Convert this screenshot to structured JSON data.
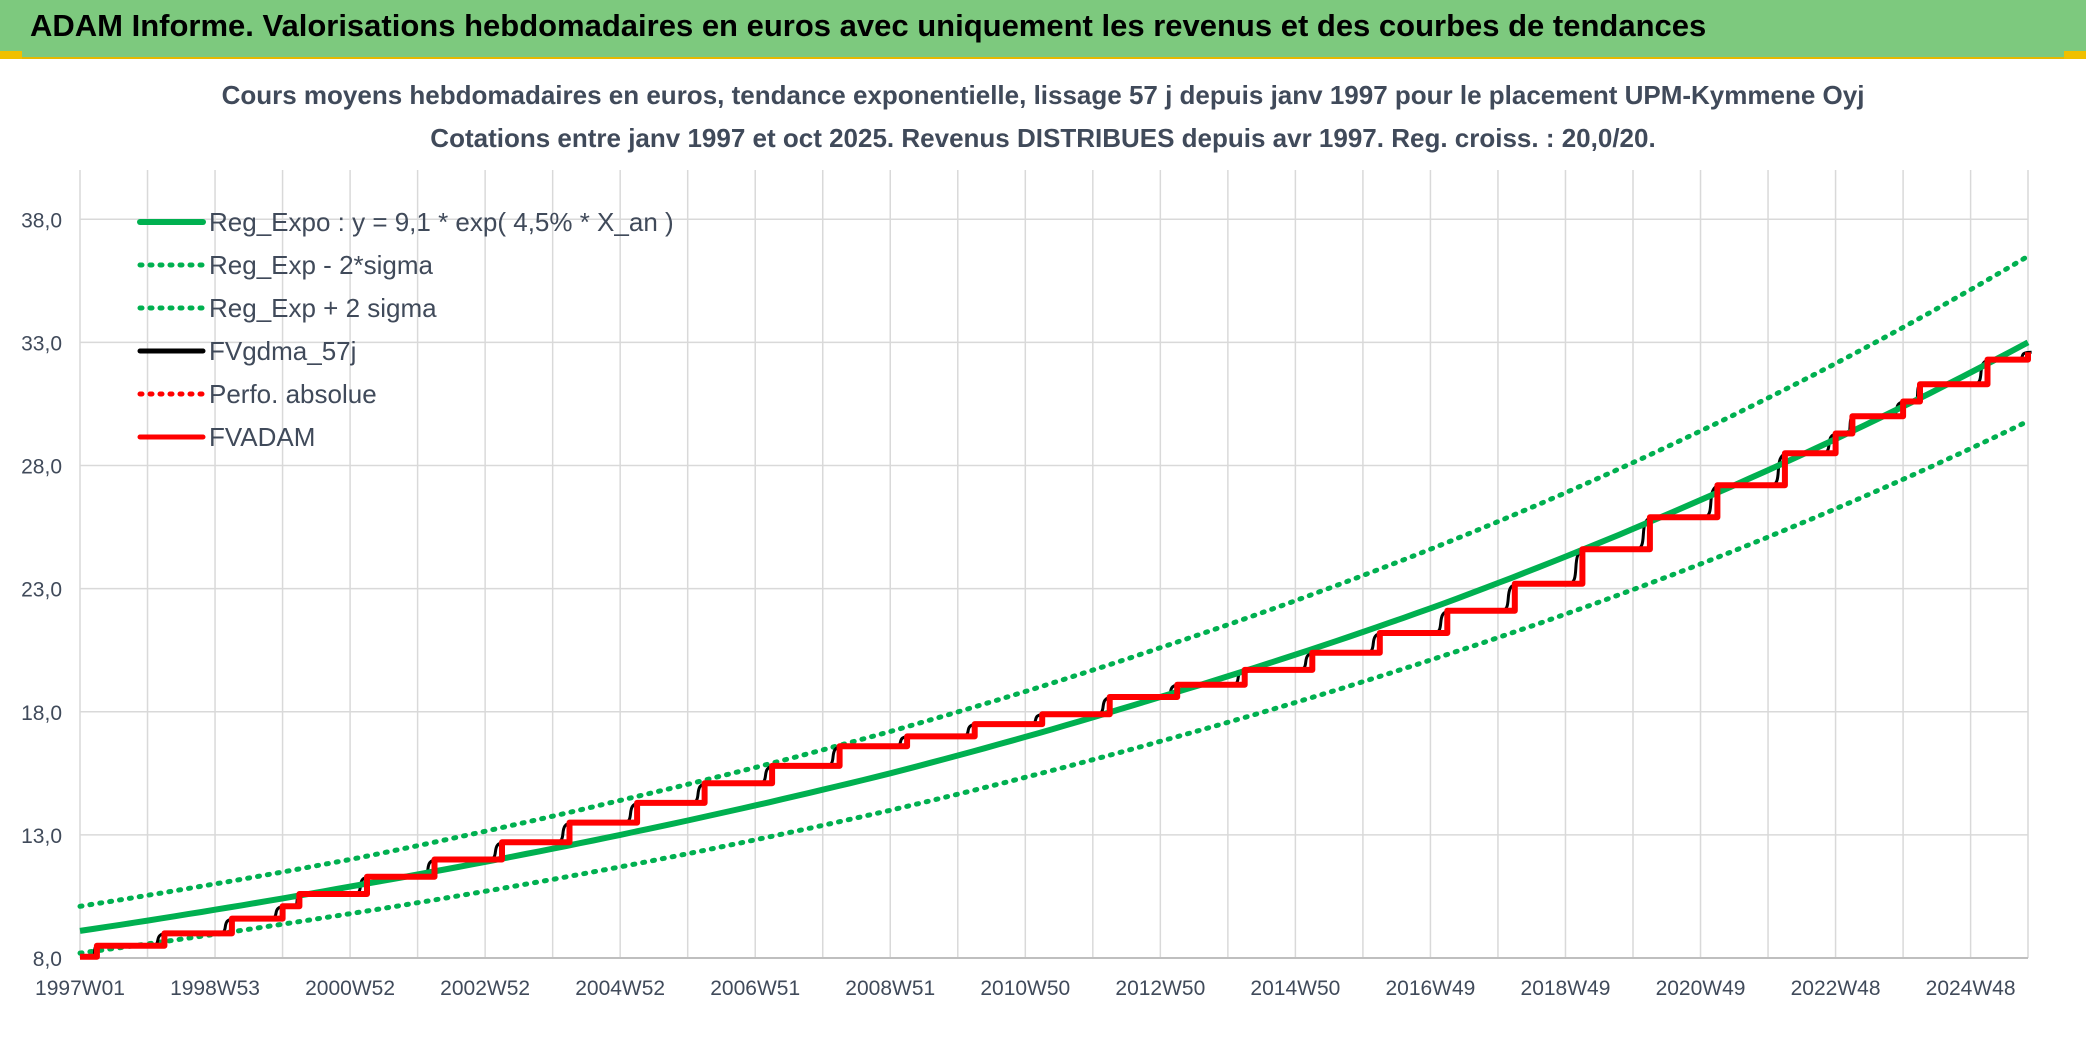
{
  "banner": {
    "title": "ADAM Informe. Valorisations hebdomadaires en euros avec uniquement les revenus et des courbes de tendances"
  },
  "colors": {
    "banner": "#7dc97e",
    "reg_expo": "#00b050",
    "fvgdma": "#000000",
    "fvadam": "#ff0000",
    "perfo": "#ff0000",
    "grid": "#d9d9d9"
  },
  "chart_data": {
    "type": "line",
    "title": "Cours moyens hebdomadaires en euros, tendance exponentielle, lissage 57 j depuis janv 1997 pour le placement UPM-Kymmene Oyj",
    "subtitle": "Cotations entre janv 1997 et oct 2025. Revenus DISTRIBUES depuis avr 1997. Reg. croiss. : 20,0/20.",
    "xlabel": "",
    "ylabel": "",
    "ylim": [
      8.0,
      40.0
    ],
    "y_ticks": [
      "8,0",
      "13,0",
      "18,0",
      "23,0",
      "28,0",
      "33,0",
      "38,0"
    ],
    "x_ticks": [
      "1997W01",
      "1998W53",
      "2000W52",
      "2002W52",
      "2004W52",
      "2006W51",
      "2008W51",
      "2010W50",
      "2012W50",
      "2014W50",
      "2016W49",
      "2018W49",
      "2020W49",
      "2022W48",
      "2024W48"
    ],
    "x_tick_years": [
      1997.0,
      1999.0,
      2001.0,
      2003.0,
      2005.0,
      2007.0,
      2009.0,
      2011.0,
      2013.0,
      2015.0,
      2017.0,
      2019.0,
      2021.0,
      2023.0,
      2025.0
    ],
    "xlim": [
      1997.0,
      2025.85
    ],
    "grid": true,
    "legend_position": "top-left",
    "legend": [
      {
        "name": "Reg_Expo : y = 9,1 * exp( 4,5% *  X_an )",
        "color": "#00b050",
        "style": "solid"
      },
      {
        "name": "Reg_Exp - 2*sigma",
        "color": "#00b050",
        "style": "dotted"
      },
      {
        "name": "Reg_Exp + 2 sigma",
        "color": "#00b050",
        "style": "dotted"
      },
      {
        "name": "FVgdma_57j",
        "color": "#000000",
        "style": "solid"
      },
      {
        "name": "Perfo. absolue",
        "color": "#ff0000",
        "style": "dotted"
      },
      {
        "name": "FVADAM",
        "color": "#ff0000",
        "style": "solid"
      }
    ],
    "series": [
      {
        "name": "Reg_Expo : y = 9,1 * exp( 4,5% *  X_an )",
        "style": "solid",
        "x": [
          1997,
          2001,
          2005,
          2009,
          2013,
          2017,
          2021,
          2025.85
        ],
        "values": [
          9.1,
          10.9,
          13.0,
          15.5,
          18.6,
          22.2,
          26.6,
          33.0
        ]
      },
      {
        "name": "Reg_Exp - 2*sigma",
        "style": "dotted",
        "x": [
          1997,
          2001,
          2005,
          2009,
          2013,
          2017,
          2021,
          2025.85
        ],
        "values": [
          8.2,
          9.8,
          11.7,
          14.0,
          16.8,
          20.1,
          24.0,
          29.8
        ]
      },
      {
        "name": "Reg_Exp + 2 sigma",
        "style": "dotted",
        "x": [
          1997,
          2001,
          2005,
          2009,
          2013,
          2017,
          2021,
          2025.85
        ],
        "values": [
          10.1,
          12.0,
          14.4,
          17.2,
          20.6,
          24.6,
          29.4,
          36.5
        ]
      },
      {
        "name": "FVADAM",
        "style": "steps",
        "x": [
          1997.0,
          1997.25,
          1998.25,
          1999.25,
          2000.0,
          2000.25,
          2001.25,
          2002.25,
          2003.25,
          2004.25,
          2005.25,
          2006.25,
          2007.25,
          2008.25,
          2009.25,
          2010.25,
          2011.25,
          2012.25,
          2013.25,
          2014.25,
          2015.25,
          2016.25,
          2017.25,
          2018.25,
          2019.25,
          2020.25,
          2021.25,
          2022.25,
          2023.0,
          2023.25,
          2024.0,
          2024.25,
          2025.25,
          2025.85
        ],
        "values": [
          8.05,
          8.5,
          9.0,
          9.6,
          10.1,
          10.6,
          11.3,
          12.0,
          12.7,
          13.5,
          14.3,
          15.1,
          15.8,
          16.6,
          17.0,
          17.5,
          17.9,
          18.6,
          19.1,
          19.7,
          20.4,
          21.2,
          22.1,
          23.2,
          24.6,
          25.9,
          27.2,
          28.5,
          29.3,
          30.0,
          30.6,
          31.3,
          32.3,
          32.6
        ]
      }
    ]
  }
}
